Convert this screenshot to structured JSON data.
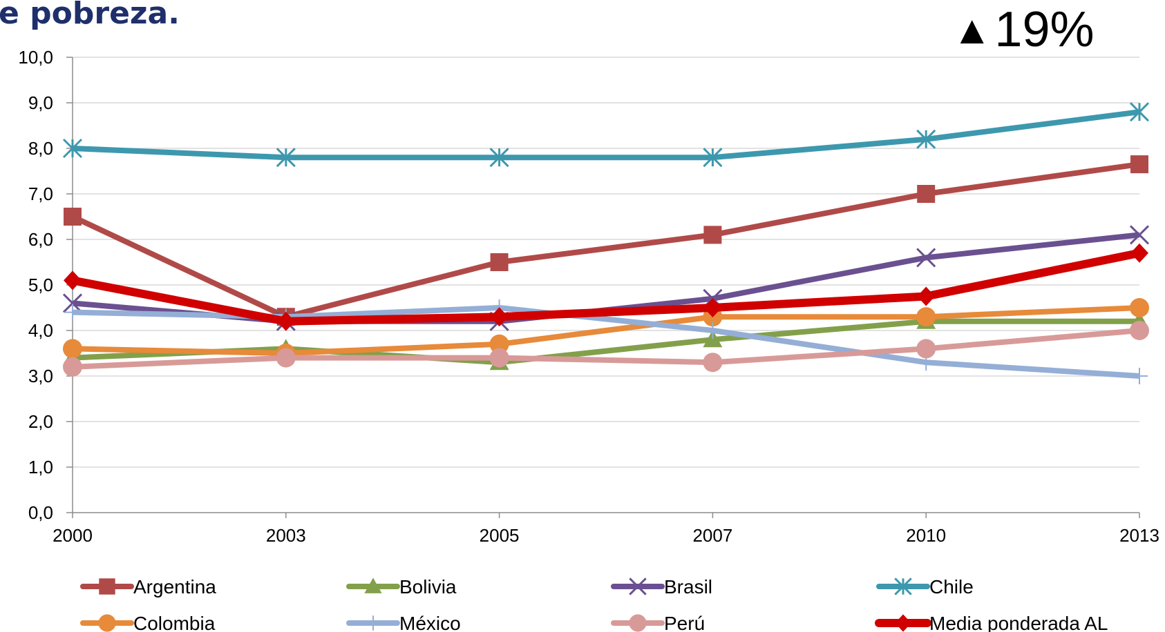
{
  "title": "e pobreza.",
  "badge": {
    "arrow": "▲",
    "value": "19%"
  },
  "chart_data": {
    "type": "line",
    "x": [
      "2000",
      "2003",
      "2005",
      "2007",
      "2010",
      "2013"
    ],
    "ylim": [
      0,
      10
    ],
    "yticks": [
      "0,0",
      "1,0",
      "2,0",
      "3,0",
      "4,0",
      "5,0",
      "6,0",
      "7,0",
      "8,0",
      "9,0",
      "10,0"
    ],
    "grid": true,
    "legend_position": "bottom",
    "series": [
      {
        "name": "Argentina",
        "color": "#b04a48",
        "marker": "square",
        "values": [
          6.5,
          4.3,
          5.5,
          6.1,
          7.0,
          7.65
        ]
      },
      {
        "name": "Bolivia",
        "color": "#82a04a",
        "marker": "triangle",
        "values": [
          3.4,
          3.6,
          3.3,
          3.8,
          4.2,
          4.2
        ]
      },
      {
        "name": "Brasil",
        "color": "#6a5090",
        "marker": "x",
        "values": [
          4.6,
          4.2,
          4.2,
          4.7,
          5.6,
          6.1
        ]
      },
      {
        "name": "Chile",
        "color": "#3d98ae",
        "marker": "asterisk",
        "values": [
          8.0,
          7.8,
          7.8,
          7.8,
          8.2,
          8.8
        ]
      },
      {
        "name": "Colombia",
        "color": "#e78a3a",
        "marker": "circle",
        "values": [
          3.6,
          3.5,
          3.7,
          4.3,
          4.3,
          4.5
        ]
      },
      {
        "name": "México",
        "color": "#94aed6",
        "marker": "plus",
        "values": [
          4.4,
          4.3,
          4.5,
          4.0,
          3.3,
          3.0
        ]
      },
      {
        "name": "Perú",
        "color": "#d89a98",
        "marker": "circle",
        "values": [
          3.2,
          3.4,
          3.4,
          3.3,
          3.6,
          4.0
        ]
      },
      {
        "name": "Media ponderada AL",
        "color": "#d10000",
        "marker": "diamond",
        "values": [
          5.1,
          4.2,
          4.3,
          4.5,
          4.75,
          5.7
        ]
      }
    ]
  }
}
